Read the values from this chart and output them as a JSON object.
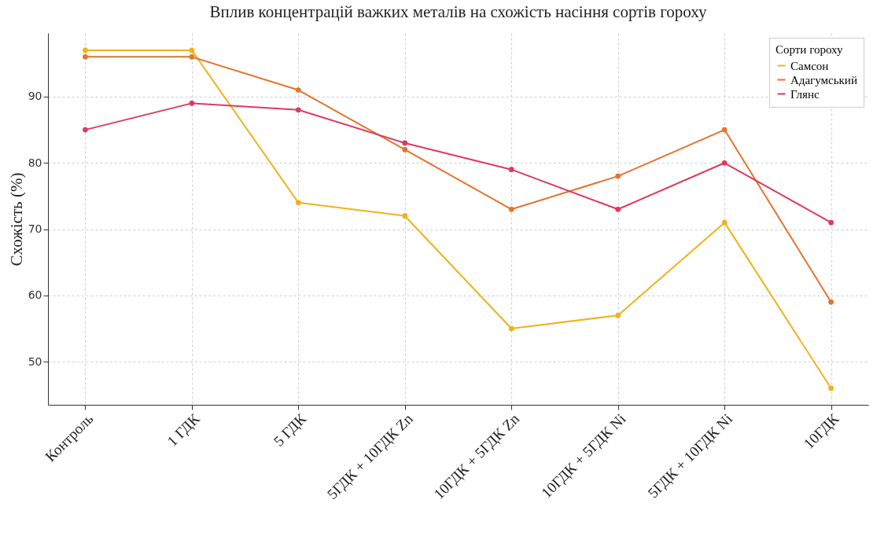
{
  "chart_data": {
    "type": "line",
    "title": "Вплив концентрацій важких металів на схожість насіння сортів гороху",
    "ylabel": "Схожість (%)",
    "legend_title": "Сорти гороху",
    "categories": [
      "Контроль",
      "1 ГДК",
      "5 ГДК",
      "5ГДК + 10ГДК Zn",
      "10ГДК +  5ГДК Zn",
      "10ГДК + 5ГДК Ni",
      "5ГДК + 10ГДК Ni",
      "10ГДК"
    ],
    "series": [
      {
        "name": "Самсон",
        "color": "#f0b21c",
        "values": [
          97,
          97,
          74,
          72,
          55,
          57,
          71,
          46
        ]
      },
      {
        "name": "Адагумський",
        "color": "#e5732c",
        "values": [
          96,
          96,
          91,
          82,
          73,
          78,
          85,
          59
        ]
      },
      {
        "name": "Глянс",
        "color": "#e0395e",
        "values": [
          85,
          89,
          88,
          83,
          79,
          73,
          80,
          71
        ]
      }
    ],
    "ylim": [
      43.5,
      99.6
    ],
    "yticks": [
      50,
      60,
      70,
      80,
      90
    ],
    "grid": true,
    "legend": "top right",
    "marker": "circle"
  }
}
